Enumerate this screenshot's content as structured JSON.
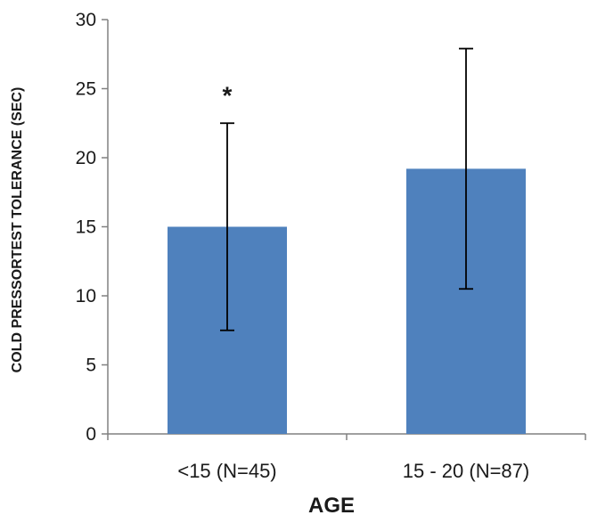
{
  "chart_data": {
    "type": "bar",
    "categories": [
      "<15 (N=45)",
      "15 - 20 (N=87)"
    ],
    "values": [
      15,
      19.2
    ],
    "error_bars": [
      {
        "low": 7.5,
        "high": 22.5
      },
      {
        "low": 10.5,
        "high": 27.9
      }
    ],
    "annotations": [
      {
        "category": "<15 (N=45)",
        "text": "*"
      }
    ],
    "xlabel": "AGE",
    "ylabel": "COLD PRESSORTEST TOLERANCE (SEC)",
    "ylim": [
      0,
      30
    ],
    "yticks": [
      "0",
      "5",
      "10",
      "15",
      "20",
      "25",
      "30"
    ],
    "grid": false,
    "legend": "none",
    "colors": {
      "bar": "#4F81BD",
      "axis": "#808080",
      "error_bar": "#000000"
    }
  }
}
